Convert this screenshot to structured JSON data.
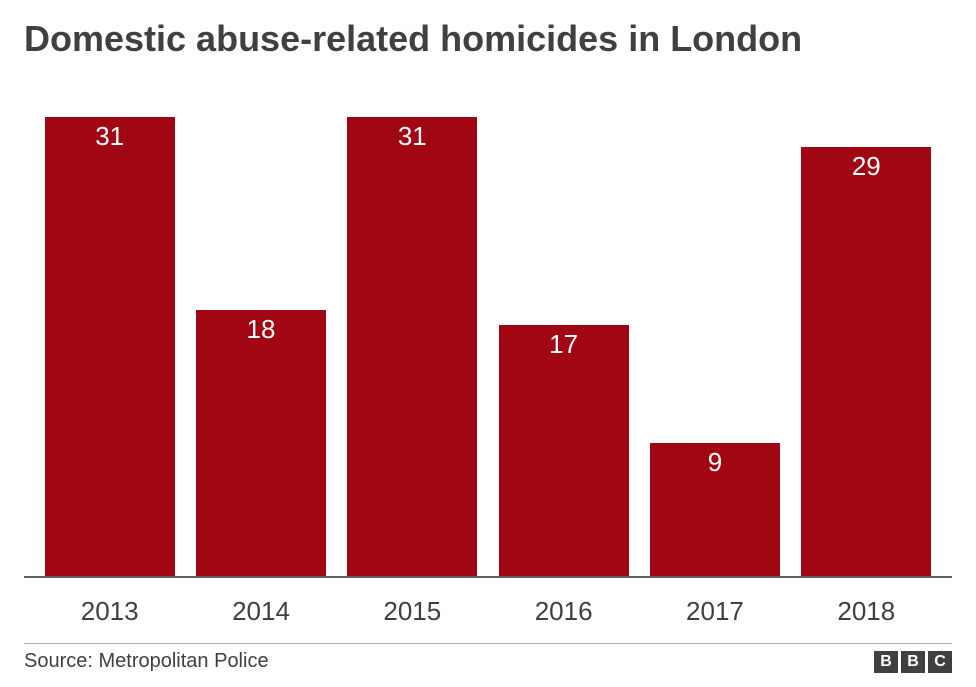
{
  "title": "Domestic abuse-related homicides in London",
  "source": "Source: Metropolitan Police",
  "logo": {
    "letters": [
      "B",
      "B",
      "C"
    ],
    "box_bg": "#404040",
    "box_fg": "#ffffff"
  },
  "chart": {
    "type": "bar",
    "categories": [
      "2013",
      "2014",
      "2015",
      "2016",
      "2017",
      "2018"
    ],
    "values": [
      31,
      18,
      31,
      17,
      9,
      29
    ],
    "bar_color": "#a00712",
    "value_label_color": "#ffffff",
    "value_label_fontsize": 26,
    "x_label_fontsize": 26,
    "title_fontsize": 36,
    "title_color": "#404040",
    "background_color": "#ffffff",
    "axis_line_color": "#606060",
    "bar_width_pct": 86,
    "ylim": [
      0,
      31
    ],
    "footer_border_color": "#b0b0b0"
  }
}
